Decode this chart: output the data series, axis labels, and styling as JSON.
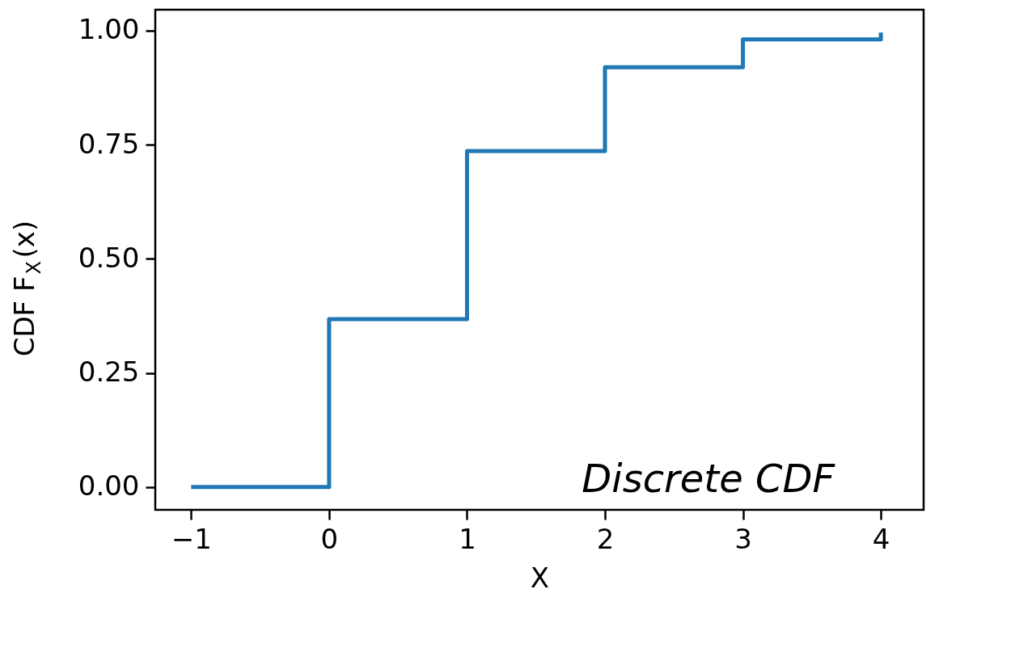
{
  "chart_data": {
    "type": "step",
    "xlabel": "X",
    "ylabel": "CDF F$_{X}$(x)",
    "x": [
      -1,
      0,
      1,
      2,
      3,
      4
    ],
    "series": [
      {
        "color": "#1f77b4",
        "values": [
          0,
          0.368,
          0.736,
          0.92,
          0.981,
          0.996
        ]
      }
    ],
    "xlim": [
      -1.26,
      4.31
    ],
    "ylim": [
      -0.05,
      1.046
    ],
    "xticks": [
      {
        "value": -1,
        "label": "−1"
      },
      0,
      1,
      2,
      3,
      4
    ],
    "yticks": [
      {
        "value": 0,
        "label": "0.00"
      },
      {
        "value": 0.25,
        "label": "0.25"
      },
      {
        "value": 0.5,
        "label": "0.50"
      },
      {
        "value": 0.75,
        "label": "0.75"
      },
      {
        "value": 1,
        "label": "1.00"
      }
    ],
    "annotations": [
      "Discrete CDF"
    ],
    "grid": false,
    "line_style": "solid",
    "marker": "none"
  }
}
